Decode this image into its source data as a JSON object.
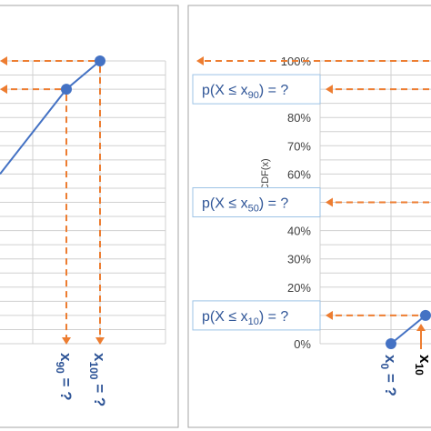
{
  "colors": {
    "curve": "#4472c4",
    "guide": "#ed7d31",
    "label_text": "#2f5597",
    "label_box_border": "#9dc3e6",
    "grid": "#d0d0d0",
    "panel_border": "#a6a6a6",
    "tick_text": "#404040"
  },
  "chart_data": [
    {
      "type": "line",
      "panel": "left",
      "x_labels": [
        "x90 = ?",
        "x100 = ?"
      ],
      "x_label_parts": [
        {
          "main": "x",
          "sub": "90",
          "rest": " = ?"
        },
        {
          "main": "x",
          "sub": "100",
          "rest": " = ?"
        }
      ],
      "series": [
        {
          "x": [
            "",
            "x90",
            "x100"
          ],
          "y": [
            0.6,
            0.9,
            1.0
          ]
        }
      ],
      "guides": [
        "horizontal-dashed-to-y-axis",
        "vertical-dashed-to-x-axis"
      ],
      "grid": true
    },
    {
      "type": "line",
      "panel": "right",
      "ylabel": "CDF(x)",
      "yticks": [
        "100%",
        "90%",
        "80%",
        "70%",
        "60%",
        "50%",
        "40%",
        "30%",
        "20%",
        "10%",
        "0%"
      ],
      "ylim": [
        0,
        1
      ],
      "y_labels": [
        {
          "pre": "p(X ≤ x",
          "sub": "90",
          "post": ") = ?",
          "y": 0.9
        },
        {
          "pre": "p(X ≤ x",
          "sub": "50",
          "post": ") = ?",
          "y": 0.5
        },
        {
          "pre": "p(X ≤ x",
          "sub": "10",
          "post": ") = ?",
          "y": 0.1
        }
      ],
      "x_label_parts": [
        {
          "main": "x",
          "sub": "0",
          "rest": " = ?"
        },
        {
          "main": "x",
          "sub": "10",
          "rest": ""
        }
      ],
      "series": [
        {
          "x": [
            "x0",
            "x10"
          ],
          "y": [
            0.0,
            0.1
          ]
        }
      ],
      "grid": true
    }
  ]
}
